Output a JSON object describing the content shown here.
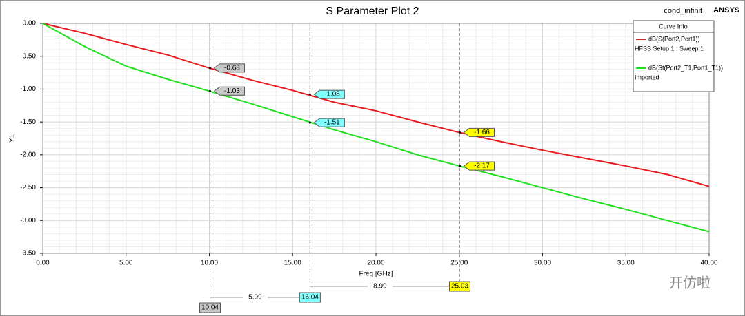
{
  "chart_data": {
    "type": "line",
    "title": "S Parameter Plot 2",
    "design_name": "cond_infinit",
    "brand": "ANSYS",
    "legend_title": "Curve Info",
    "legend": "top-right",
    "xlabel": "Freq [GHz]",
    "ylabel": "Y1",
    "grid": true,
    "x": [
      0,
      2.5,
      5,
      7.5,
      10,
      12.5,
      15,
      17.5,
      20,
      22.5,
      25,
      27.5,
      30,
      32.5,
      35,
      37.5,
      40
    ],
    "series": [
      {
        "name": "dB(S(Port2,Port1))",
        "source": "HFSS Setup 1 : Sweep 1",
        "color": "#e8191e",
        "values": [
          0,
          -0.15,
          -0.32,
          -0.48,
          -0.68,
          -0.86,
          -1.02,
          -1.2,
          -1.33,
          -1.5,
          -1.66,
          -1.8,
          -1.93,
          -2.05,
          -2.17,
          -2.3,
          -2.48
        ]
      },
      {
        "name": "dB(St(Port2_T1,Port1_T1))",
        "source": "Imported",
        "color": "#1ee01e",
        "values": [
          0,
          -0.35,
          -0.65,
          -0.85,
          -1.03,
          -1.22,
          -1.42,
          -1.62,
          -1.8,
          -2.0,
          -2.17,
          -2.33,
          -2.5,
          -2.67,
          -2.83,
          -3.0,
          -3.17
        ]
      }
    ],
    "markers": [
      {
        "x": 10.04,
        "values": [
          -0.68,
          -1.03
        ],
        "color": "#c8c8c8"
      },
      {
        "x": 16.04,
        "values": [
          -1.08,
          -1.51
        ],
        "color": "#80ffff"
      },
      {
        "x": 25.03,
        "values": [
          -1.66,
          -2.17
        ],
        "color": "#ffff00"
      }
    ],
    "marker_deltas": [
      5.99,
      8.99
    ],
    "xlim": [
      0,
      40
    ],
    "xticks": [
      {
        "value": 0,
        "label": "0.00"
      },
      {
        "value": 5,
        "label": "5.00"
      },
      {
        "value": 10,
        "label": "10.00"
      },
      {
        "value": 15,
        "label": "15.00"
      },
      {
        "value": 20,
        "label": "20.00"
      },
      {
        "value": 25,
        "label": "25.00"
      },
      {
        "value": 30,
        "label": "30.00"
      },
      {
        "value": 35,
        "label": "35.00"
      },
      {
        "value": 40,
        "label": "40.00"
      }
    ],
    "ylim": [
      -3.5,
      0
    ],
    "yticks": [
      {
        "value": 0,
        "label": "0.00"
      },
      {
        "value": -0.5,
        "label": "-0.50"
      },
      {
        "value": -1,
        "label": "-1.00"
      },
      {
        "value": -1.5,
        "label": "-1.50"
      },
      {
        "value": -2,
        "label": "-2.00"
      },
      {
        "value": -2.5,
        "label": "-2.50"
      },
      {
        "value": -3,
        "label": "-3.00"
      },
      {
        "value": -3.5,
        "label": "-3.50"
      }
    ],
    "watermark": "开仿啦"
  }
}
